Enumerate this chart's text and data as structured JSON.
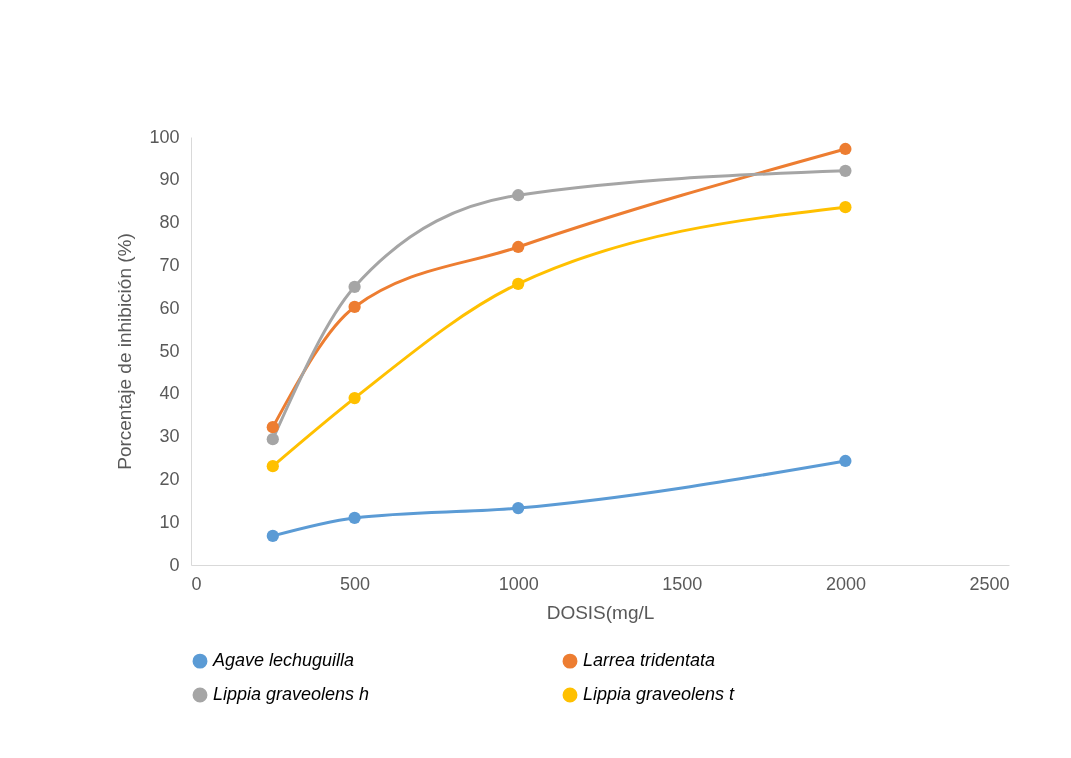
{
  "chart_data": {
    "type": "line",
    "xlabel": "DOSIS(mg/L",
    "ylabel": "Porcentaje de inhibición (%)",
    "x": [
      250,
      500,
      1000,
      2000
    ],
    "series": [
      {
        "name": "Agave lechuguilla",
        "color": "#5b9bd5",
        "values": [
          6.8,
          11.0,
          13.3,
          24.3
        ]
      },
      {
        "name": "Larrea tridentata",
        "color": "#ed7d31",
        "values": [
          32.2,
          60.3,
          74.3,
          97.2
        ]
      },
      {
        "name": "Lippia graveolens h",
        "color": "#a5a5a5",
        "values": [
          29.4,
          65.0,
          86.4,
          92.1
        ]
      },
      {
        "name": "Lippia graveolens t",
        "color": "#ffc000",
        "values": [
          23.1,
          39.0,
          65.7,
          83.6
        ]
      }
    ],
    "xlim": [
      0,
      2500
    ],
    "xticks": [
      0,
      500,
      1000,
      1500,
      2000,
      2500
    ],
    "ylim": [
      0,
      100
    ],
    "yticks": [
      0,
      10,
      20,
      30,
      40,
      50,
      60,
      70,
      80,
      90,
      100
    ],
    "grid": false,
    "legend": "bottom",
    "marker": "circle",
    "line_style": "solid"
  }
}
